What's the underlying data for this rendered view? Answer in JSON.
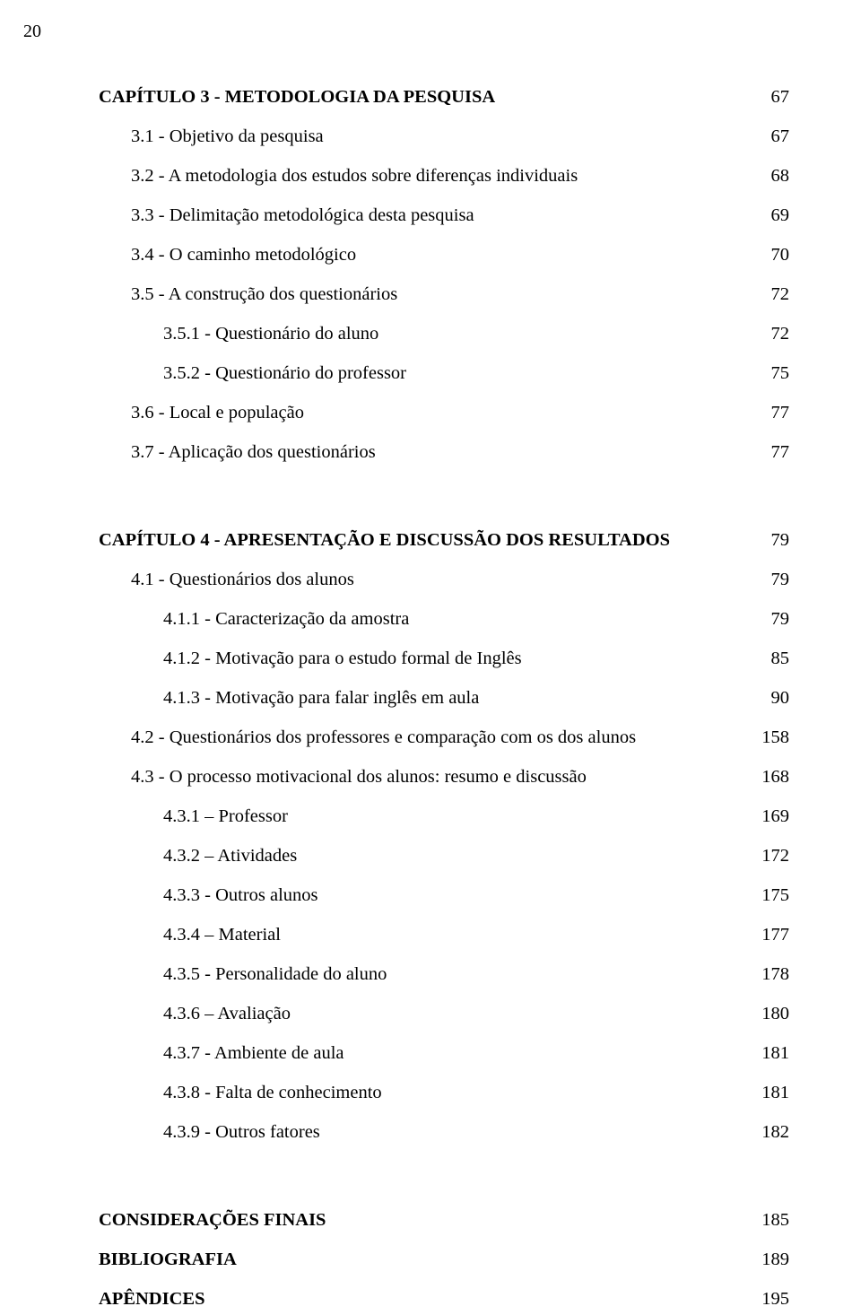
{
  "page": {
    "number": "20",
    "background_color": "#ffffff",
    "text_color": "#000000",
    "font_family": "Times New Roman",
    "base_fontsize_pt": 15
  },
  "toc": [
    {
      "label": "CAPÍTULO 3 - METODOLOGIA DA PESQUISA",
      "page": "67",
      "bold": true,
      "indent": 0
    },
    {
      "label": "3.1 - Objetivo da pesquisa",
      "page": "67",
      "bold": false,
      "indent": 1
    },
    {
      "label": "3.2 - A metodologia dos estudos sobre diferenças individuais",
      "page": "68",
      "bold": false,
      "indent": 1
    },
    {
      "label": "3.3 - Delimitação metodológica desta pesquisa",
      "page": "69",
      "bold": false,
      "indent": 1
    },
    {
      "label": "3.4 - O caminho metodológico",
      "page": "70",
      "bold": false,
      "indent": 1
    },
    {
      "label": "3.5 - A construção dos questionários",
      "page": "72",
      "bold": false,
      "indent": 1
    },
    {
      "label": "3.5.1 - Questionário do aluno",
      "page": "72",
      "bold": false,
      "indent": 2
    },
    {
      "label": "3.5.2 - Questionário do professor",
      "page": "75",
      "bold": false,
      "indent": 2
    },
    {
      "label": "3.6 - Local e população",
      "page": "77",
      "bold": false,
      "indent": 1
    },
    {
      "label": "3.7 - Aplicação dos questionários",
      "page": "77",
      "bold": false,
      "indent": 1,
      "gap_after": true
    },
    {
      "label": "CAPÍTULO 4 - APRESENTAÇÃO E DISCUSSÃO DOS RESULTADOS",
      "page": "79",
      "bold": true,
      "indent": 0
    },
    {
      "label": "4.1 - Questionários dos alunos",
      "page": "79",
      "bold": false,
      "indent": 1
    },
    {
      "label": "4.1.1 - Caracterização da amostra",
      "page": "79",
      "bold": false,
      "indent": 2
    },
    {
      "label": "4.1.2 - Motivação para o estudo formal de Inglês",
      "page": "85",
      "bold": false,
      "indent": 2
    },
    {
      "label": "4.1.3 - Motivação para falar inglês em aula",
      "page": "90",
      "bold": false,
      "indent": 2
    },
    {
      "label": "4.2 - Questionários dos professores e comparação com os dos alunos",
      "page": "158",
      "bold": false,
      "indent": 1
    },
    {
      "label": "4.3 - O processo motivacional dos alunos: resumo e discussão",
      "page": "168",
      "bold": false,
      "indent": 1
    },
    {
      "label": "4.3.1 – Professor",
      "page": "169",
      "bold": false,
      "indent": 2
    },
    {
      "label": "4.3.2 – Atividades",
      "page": "172",
      "bold": false,
      "indent": 2
    },
    {
      "label": "4.3.3 - Outros alunos",
      "page": "175",
      "bold": false,
      "indent": 2
    },
    {
      "label": "4.3.4 – Material",
      "page": "177",
      "bold": false,
      "indent": 2
    },
    {
      "label": "4.3.5 - Personalidade do aluno",
      "page": "178",
      "bold": false,
      "indent": 2
    },
    {
      "label": "4.3.6 – Avaliação",
      "page": "180",
      "bold": false,
      "indent": 2
    },
    {
      "label": "4.3.7 - Ambiente de aula",
      "page": "181",
      "bold": false,
      "indent": 2
    },
    {
      "label": "4.3.8 - Falta de conhecimento",
      "page": "181",
      "bold": false,
      "indent": 2
    },
    {
      "label": "4.3.9 - Outros fatores",
      "page": "182",
      "bold": false,
      "indent": 2,
      "gap_after": true
    },
    {
      "label": "CONSIDERAÇÕES FINAIS",
      "page": "185",
      "bold": true,
      "indent": 0
    },
    {
      "label": "BIBLIOGRAFIA",
      "page": "189",
      "bold": true,
      "indent": 0
    },
    {
      "label": "APÊNDICES",
      "page": "195",
      "bold": true,
      "indent": 0
    }
  ]
}
